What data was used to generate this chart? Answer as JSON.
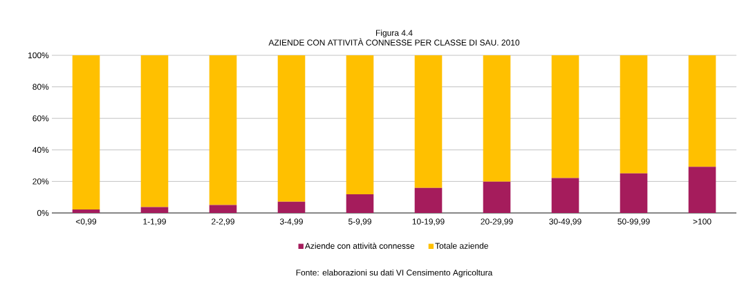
{
  "chart_data": {
    "type": "bar",
    "title": "Figura 4.4",
    "subtitle": "AZIENDE CON ATTIVITÀ CONNESSE PER CLASSE DI SAU. 2010",
    "categories": [
      "<0,99",
      "1-1,99",
      "2-2,99",
      "3-4,99",
      "5-9,99",
      "10-19,99",
      "20-29,99",
      "30-49,99",
      "50-99,99",
      ">100"
    ],
    "stacked": true,
    "series": [
      {
        "name": "Aziende con attività connesse",
        "color": "#a51c5c",
        "values": [
          2.2,
          3.7,
          5.1,
          7.1,
          11.8,
          15.9,
          19.9,
          22.1,
          25.1,
          29.3
        ]
      },
      {
        "name": "Totale aziende",
        "color": "#ffc000",
        "values": [
          97.8,
          96.3,
          94.9,
          92.9,
          88.2,
          84.1,
          80.1,
          77.9,
          74.9,
          70.7
        ]
      }
    ],
    "ylim": [
      0,
      100
    ],
    "yticks": [
      {
        "value": 0,
        "label": "0%"
      },
      {
        "value": 20,
        "label": "20%"
      },
      {
        "value": 40,
        "label": "40%"
      },
      {
        "value": 60,
        "label": "60%"
      },
      {
        "value": 80,
        "label": "80%"
      },
      {
        "value": 100,
        "label": "100%"
      }
    ],
    "grid": "y",
    "legend": "bottom",
    "annotations": [
      "Fonte: elaborazioni su dati VI Censimento Agricoltura"
    ]
  }
}
